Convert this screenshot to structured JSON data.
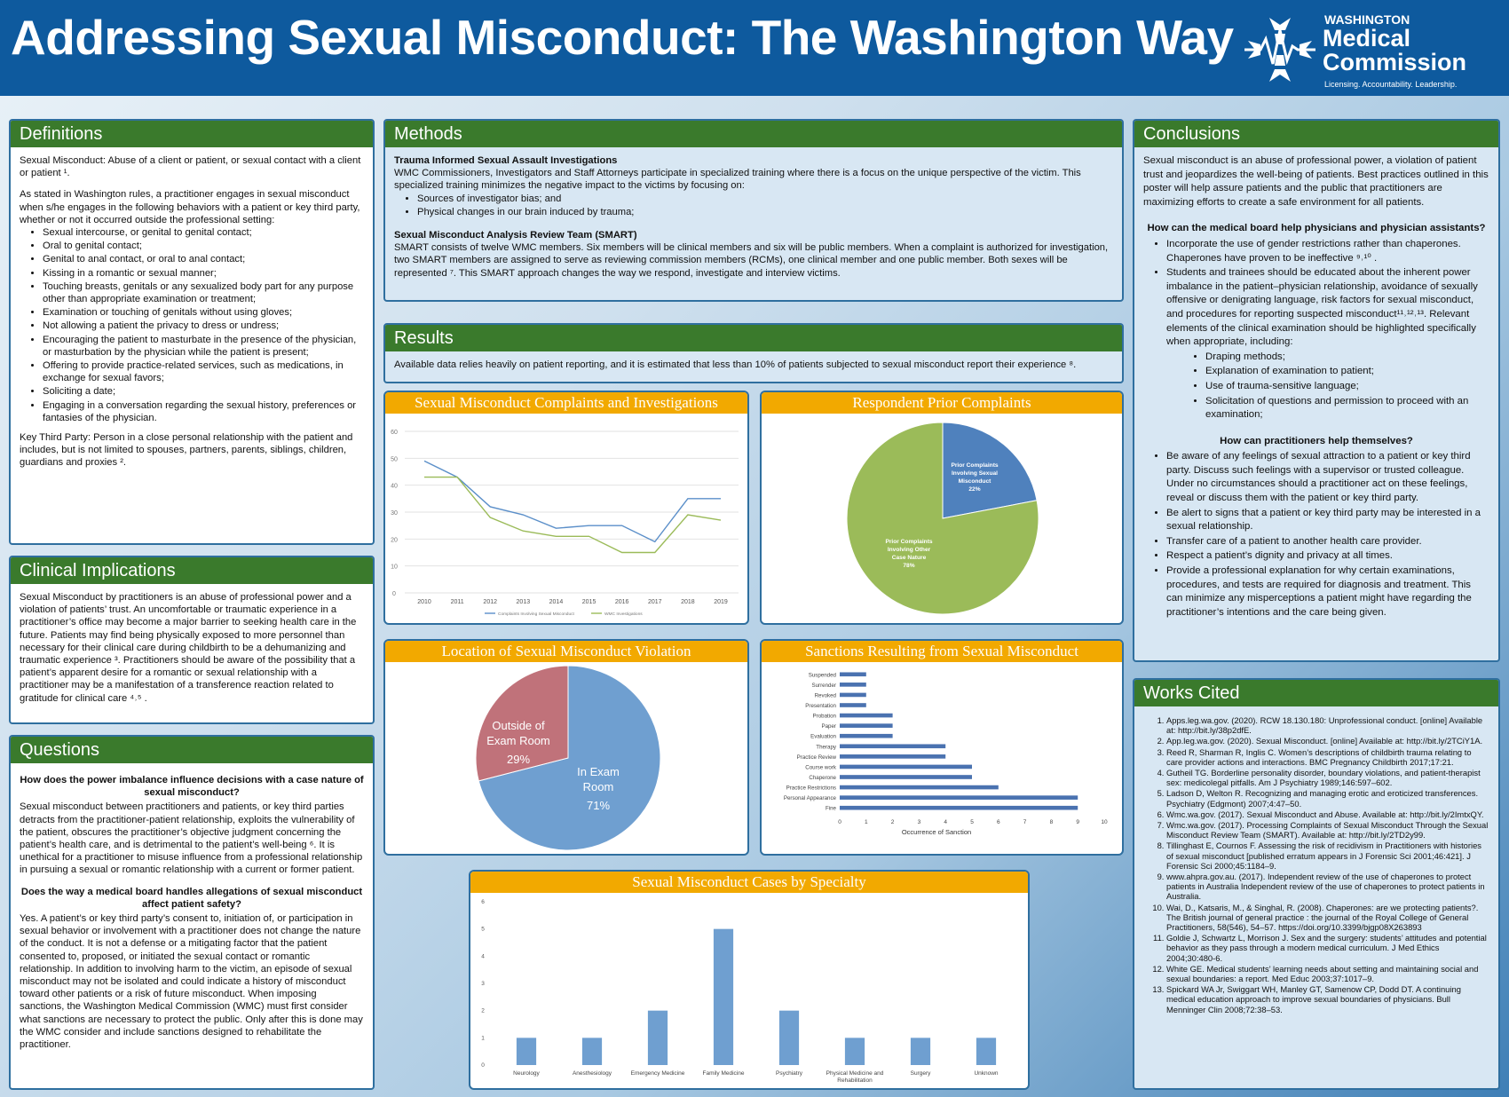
{
  "title": "Addressing Sexual Misconduct: The Washington Way",
  "logo": {
    "line1": "WASHINGTON",
    "line2": "Medical",
    "line3": "Commission",
    "tagline": "Licensing. Accountability. Leadership."
  },
  "definitions": {
    "title": "Definitions",
    "p1": "Sexual Misconduct: Abuse of a client or patient, or sexual contact with a client or patient ¹.",
    "p2": "As stated in Washington rules, a practitioner engages in sexual misconduct when s/he engages in the following behaviors with a patient or key third party, whether or not it occurred outside the professional setting:",
    "items": [
      "Sexual intercourse, or genital to genital contact;",
      "Oral to genital contact;",
      "Genital to anal contact, or oral to anal contact;",
      "Kissing in a romantic or sexual manner;",
      "Touching breasts, genitals or any sexualized body part for any purpose other than appropriate examination or treatment;",
      "Examination or touching of genitals without using gloves;",
      "Not allowing a patient the privacy to dress or undress;",
      "Encouraging the patient to masturbate in the presence of the physician, or masturbation by the physician while the patient is present;",
      "Offering to provide practice-related services, such as medications, in exchange for sexual favors;",
      "Soliciting a date;",
      "Engaging in a conversation regarding the sexual history, preferences or fantasies of the physician."
    ],
    "p3": "Key Third Party: Person in a close personal relationship with the patient and includes, but is not limited to spouses, partners, parents, siblings, children, guardians and proxies ²."
  },
  "clinical": {
    "title": "Clinical Implications",
    "text": "Sexual Misconduct by practitioners is an abuse of professional power and a violation of patients’ trust. An uncomfortable or traumatic experience in a practitioner’s office may become a major barrier to seeking health care in the future. Patients may find being physically exposed to more personnel than necessary for their clinical care during childbirth to be a dehumanizing and traumatic experience ³. Practitioners should be aware of the possibility that a patient’s apparent desire for a romantic or sexual relationship with a practitioner may be a manifestation of a transference reaction related to gratitude for clinical care ⁴˒⁵ ."
  },
  "questions": {
    "title": "Questions",
    "q1": "How does the power imbalance influence decisions with a case nature of sexual misconduct?",
    "a1": "Sexual misconduct between practitioners and patients, or key third parties detracts from the practitioner-patient relationship, exploits the vulnerability of the patient, obscures the practitioner’s objective judgment concerning the patient’s health care, and is detrimental to the patient’s well-being ⁶. It is unethical for a practitioner to misuse influence from a professional relationship in pursuing a sexual or romantic relationship with a current or former patient.",
    "q2": "Does the way a medical board handles allegations of sexual misconduct affect patient safety?",
    "a2": "Yes. A patient’s or key third party’s consent to, initiation of, or participation in sexual behavior or involvement with a practitioner does not change the nature of the conduct. It is not a defense or a mitigating factor that the patient consented to, proposed, or initiated the sexual contact or romantic relationship. In addition to involving harm to the victim, an episode of sexual misconduct may not be isolated and could indicate a history of misconduct toward other patients or a risk of future misconduct. When imposing sanctions, the Washington Medical Commission (WMC) must first consider what sanctions are necessary to protect the public. Only after this is done may the WMC consider and include sanctions designed to rehabilitate the practitioner."
  },
  "methods": {
    "title": "Methods",
    "h1": "Trauma Informed Sexual Assault Investigations",
    "p1": "WMC Commissioners, Investigators and Staff Attorneys participate in specialized training where there is a focus on the unique perspective of the victim. This specialized training minimizes the negative impact to the victims by focusing on:",
    "items": [
      "Sources of investigator bias; and",
      "Physical changes in our brain induced by trauma;"
    ],
    "h2": "Sexual Misconduct Analysis Review Team (SMART)",
    "p2": "SMART consists of twelve WMC members. Six members will be clinical members and six will be public members. When a complaint is authorized for investigation, two SMART members are assigned to serve as reviewing commission members (RCMs), one clinical member and one public member. Both sexes will be represented ⁷. This SMART approach changes the way we respond, investigate and interview victims."
  },
  "results": {
    "title": "Results",
    "text": "Available data relies heavily on patient reporting, and it is estimated that less than 10% of patients subjected to sexual misconduct report their experience ⁸."
  },
  "charts": {
    "complaints_title": "Sexual Misconduct Complaints and Investigations",
    "prior_title": "Respondent Prior Complaints",
    "location_title": "Location of Sexual Misconduct Violation",
    "sanctions_title": "Sanctions Resulting from Sexual Misconduct",
    "specialty_title": "Sexual Misconduct Cases by Specialty",
    "sanctions_xlabel": "Occurrence of Sanction"
  },
  "chart_data": [
    {
      "type": "line",
      "title": "Sexual Misconduct Complaints and Investigations",
      "x": [
        "2010",
        "2011",
        "2012",
        "2013",
        "2014",
        "2015",
        "2016",
        "2017",
        "2018",
        "2019"
      ],
      "ylim": [
        0,
        60
      ],
      "yticks": [
        "0",
        "10",
        "20",
        "30",
        "40",
        "50",
        "60"
      ],
      "series": [
        {
          "name": "Complaints Involving Sexual Misconduct",
          "values": [
            49,
            43,
            32,
            29,
            24,
            25,
            25,
            19,
            35,
            35
          ],
          "color": "#5b8fc9"
        },
        {
          "name": "WMC Investigations",
          "values": [
            43,
            43,
            28,
            23,
            21,
            21,
            15,
            15,
            29,
            27
          ],
          "color": "#9bbb59"
        }
      ]
    },
    {
      "type": "pie",
      "title": "Respondent Prior Complaints",
      "slices": [
        {
          "label": "Prior Complaints Involving Sexual Misconduct",
          "pct": "22%",
          "value": 22,
          "color": "#4f81bd"
        },
        {
          "label": "Prior Complaints Involving Other Case Nature",
          "pct": "78%",
          "value": 78,
          "color": "#9bbb59"
        }
      ]
    },
    {
      "type": "pie",
      "title": "Location of Sexual Misconduct Violation",
      "slices": [
        {
          "label": "In Exam Room",
          "pct": "71%",
          "value": 71,
          "color": "#6f9fd0"
        },
        {
          "label": "Outside of Exam Room",
          "pct": "29%",
          "value": 29,
          "color": "#c0727a"
        }
      ]
    },
    {
      "type": "bar",
      "orientation": "horizontal",
      "title": "Sanctions Resulting from Sexual Misconduct",
      "xlabel": "Occurrence of Sanction",
      "xlim": [
        0,
        10
      ],
      "xticks": [
        "0",
        "1",
        "2",
        "3",
        "4",
        "5",
        "6",
        "7",
        "8",
        "9",
        "10"
      ],
      "categories": [
        "Suspended",
        "Surrender",
        "Revoked",
        "Presentation",
        "Probation",
        "Paper",
        "Evaluation",
        "Therapy",
        "Practice Review",
        "Course work",
        "Chaperone",
        "Practice Restrictions",
        "Personal Appearance",
        "Fine"
      ],
      "values": [
        1,
        1,
        1,
        1,
        2,
        2,
        2,
        4,
        4,
        5,
        5,
        6,
        9,
        9
      ],
      "color": "#4a72b0"
    },
    {
      "type": "bar",
      "title": "Sexual Misconduct Cases by Specialty",
      "ylim": [
        0,
        6
      ],
      "yticks": [
        "0",
        "1",
        "2",
        "3",
        "4",
        "5",
        "6"
      ],
      "categories": [
        "Neurology",
        "Anesthesiology",
        "Emergency Medicine",
        "Family Medicine",
        "Psychiatry",
        "Physical Medicine and Rehabilitation",
        "Surgery",
        "Unknown"
      ],
      "values": [
        1,
        1,
        2,
        5,
        2,
        1,
        1,
        1
      ],
      "color": "#6f9fd0"
    }
  ],
  "conclusions": {
    "title": "Conclusions",
    "p1": "Sexual misconduct is an abuse of professional power, a violation of patient trust and jeopardizes the well-being of patients. Best practices outlined in this poster will help assure patients and the public that practitioners are maximizing efforts to create a safe environment for all patients.",
    "q1": "How can the medical board help physicians and physician assistants?",
    "list1": [
      "Incorporate the use of gender restrictions rather than chaperones. Chaperones have proven to be ineffective ⁹˒¹⁰ .",
      "Students and trainees should be educated about the inherent power imbalance in the patient–physician relationship, avoidance of sexually offensive or denigrating language, risk factors for sexual misconduct, and procedures for reporting suspected misconduct¹¹˒¹²˒¹³. Relevant elements of the clinical examination should be highlighted specifically when appropriate, including:"
    ],
    "sublist": [
      "Draping methods;",
      "Explanation of examination to patient;",
      "Use of trauma-sensitive language;",
      "Solicitation of questions and permission to proceed with an examination;"
    ],
    "q2": "How can practitioners help themselves?",
    "list2": [
      "Be aware of any feelings of sexual attraction to a patient or key third party. Discuss such feelings with a supervisor or trusted colleague. Under no circumstances should a practitioner act on these feelings, reveal or discuss them with the patient or key third party.",
      "Be alert to signs that a patient or key third party may be interested in a sexual relationship.",
      "Transfer care of a patient to another health care provider.",
      "Respect a patient’s dignity and privacy at all times.",
      "Provide a professional explanation for why certain examinations, procedures, and tests are required for diagnosis and treatment. This can minimize any misperceptions a patient might have regarding the practitioner’s intentions and the care being given."
    ]
  },
  "works": {
    "title": "Works Cited",
    "items": [
      "Apps.leg.wa.gov. (2020). RCW 18.130.180: Unprofessional conduct. [online] Available at: http://bit.ly/38p2dfE.",
      "App.leg.wa.gov. (2020). Sexual Misconduct. [online] Available at: http://bit.ly/2TCiY1A.",
      "Reed R, Sharman R, Inglis C. Women’s descriptions of childbirth trauma relating to care provider actions and interactions. BMC Pregnancy Childbirth 2017;17:21.",
      "Gutheil TG. Borderline personality disorder, boundary violations, and patient-therapist sex: medicolegal pitfalls. Am J Psychiatry 1989;146:597–602.",
      "Ladson D, Welton R. Recognizing and managing erotic and eroticized transferences. Psychiatry (Edgmont) 2007;4:47–50.",
      "Wmc.wa.gov. (2017). Sexual Misconduct and Abuse. Available at: http://bit.ly/2ImtxQY.",
      "Wmc.wa.gov. (2017). Processing Complaints of Sexual Misconduct Through the Sexual Misconduct Review Team (SMART). Available at: http://bit.ly/2TD2y99.",
      "Tillinghast E, Cournos F. Assessing the risk of recidivism in Practitioners with histories of sexual misconduct [published erratum appears in J Forensic Sci 2001;46:421]. J Forensic Sci 2000;45:1184–9.",
      "www.ahpra.gov.au. (2017). Independent review of the use of chaperones to protect patients in Australia Independent review of the use of chaperones to protect patients in Australia.",
      "Wai, D., Katsaris, M., & Singhal, R. (2008). Chaperones: are we protecting patients?. The British journal of general practice : the journal of the Royal College of General Practitioners, 58(546), 54–57. https://doi.org/10.3399/bjgp08X263893",
      "Goldie J, Schwartz L, Morrison J. Sex and the surgery: students’ attitudes and potential behavior as they pass through a modern medical curriculum. J Med Ethics 2004;30:480-6.",
      "White GE. Medical students’ learning needs about setting and maintaining social and sexual boundaries: a report. Med Educ 2003;37:1017–9.",
      "Spickard WA Jr, Swiggart WH, Manley GT, Samenow CP, Dodd DT. A continuing medical education approach to improve sexual boundaries of physicians. Bull Menninger Clin 2008;72:38–53."
    ]
  },
  "colors": {
    "header_blue": "#0e5a9e",
    "title_green": "#3a7a2c",
    "chart_title_gold": "#f2a900"
  }
}
